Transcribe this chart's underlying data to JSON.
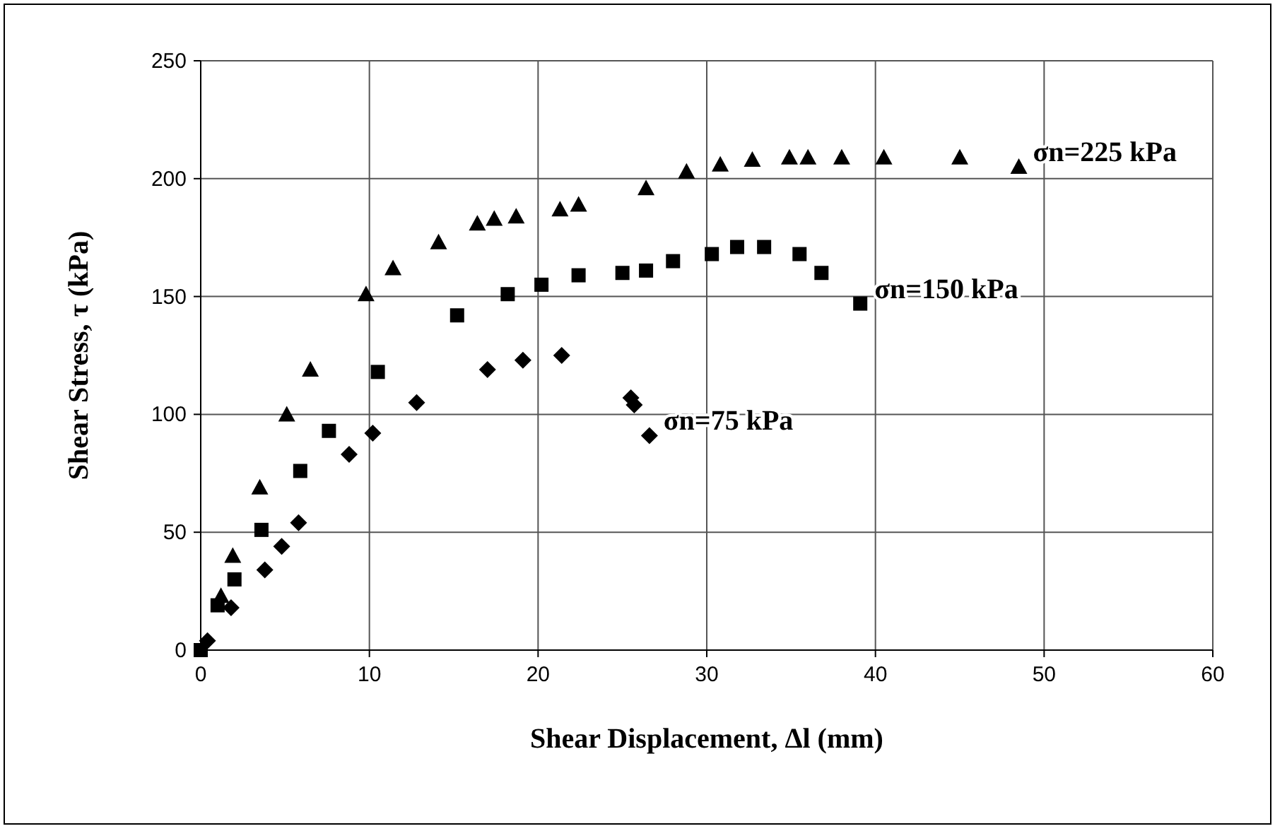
{
  "chart_data": {
    "type": "scatter",
    "xlabel": "Shear Displacement, Δl (mm)",
    "ylabel": "Shear Stress, τ (kPa)",
    "xlim": [
      0,
      60
    ],
    "xticks": [
      0,
      10,
      20,
      30,
      40,
      50,
      60
    ],
    "ylim": [
      0,
      250
    ],
    "yticks": [
      0,
      50,
      100,
      150,
      200,
      250
    ],
    "grid": true,
    "series": [
      {
        "name": "σn=75 kPa",
        "color": "#000000",
        "marker": "diamond",
        "x": [
          0.4,
          1.8,
          3.8,
          4.8,
          5.8,
          8.8,
          10.2,
          12.8,
          17,
          19.1,
          21.4,
          25.5,
          25.7,
          26.6
        ],
        "values": [
          4,
          18,
          34,
          44,
          54,
          83,
          92,
          105,
          119,
          123,
          125,
          107,
          104,
          91
        ]
      },
      {
        "name": "σn=150 kPa",
        "color": "#000000",
        "marker": "square",
        "x": [
          0,
          1.0,
          2.0,
          3.6,
          5.9,
          7.6,
          10.5,
          15.2,
          18.2,
          20.2,
          22.4,
          25,
          26.4,
          28,
          30.3,
          31.8,
          33.4,
          35.5,
          36.8,
          39.1
        ],
        "values": [
          0,
          19,
          30,
          51,
          76,
          93,
          118,
          142,
          151,
          155,
          159,
          160,
          161,
          165,
          168,
          171,
          171,
          168,
          160,
          147
        ]
      },
      {
        "name": "σn=225 kPa",
        "color": "#000000",
        "marker": "triangle",
        "x": [
          1.2,
          1.9,
          3.5,
          5.1,
          6.5,
          9.8,
          11.4,
          14.1,
          16.4,
          17.4,
          18.7,
          21.3,
          22.4,
          26.4,
          28.8,
          30.8,
          32.7,
          34.9,
          36,
          38,
          40.5,
          45,
          48.5
        ],
        "values": [
          23,
          40,
          69,
          100,
          119,
          151,
          162,
          173,
          181,
          183,
          184,
          187,
          189,
          196,
          203,
          206,
          208,
          209,
          209,
          209,
          209,
          209,
          205
        ]
      }
    ]
  }
}
